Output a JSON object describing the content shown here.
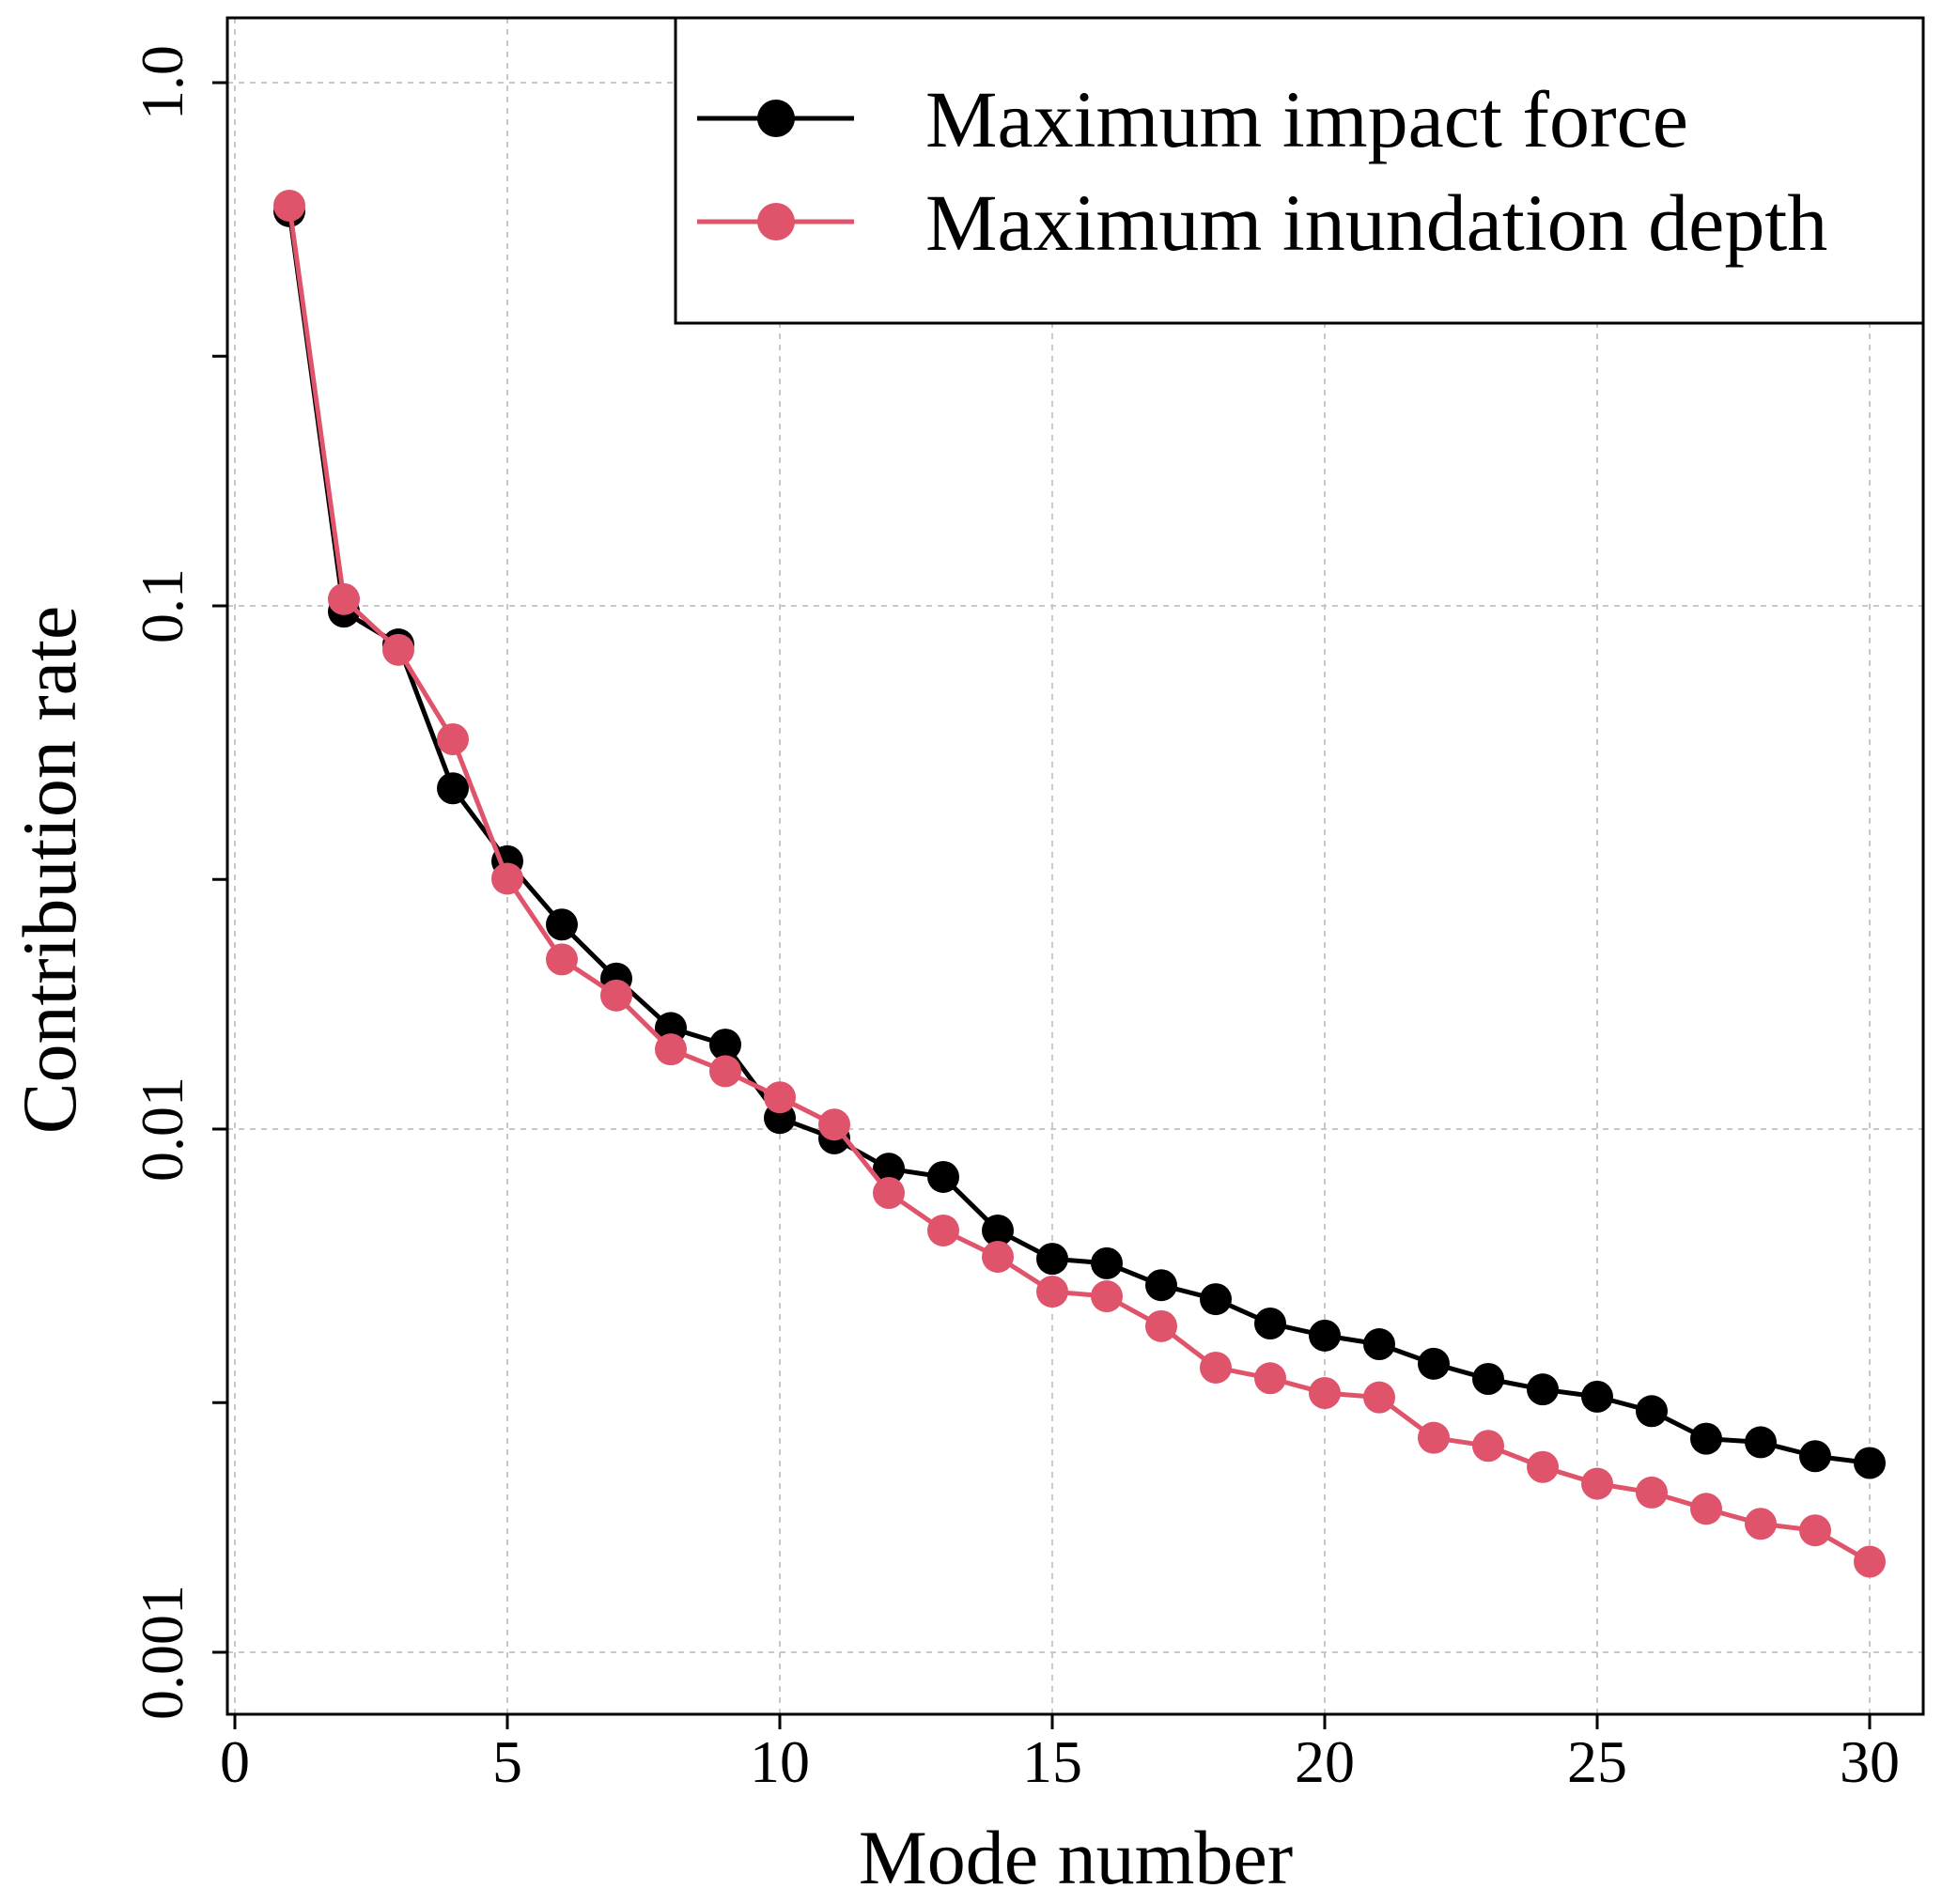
{
  "chart_data": {
    "type": "line",
    "title": "",
    "xlabel": "Mode number",
    "ylabel": "Contribution rate",
    "x_scale": "linear",
    "y_scale": "log",
    "xlim": [
      0,
      30
    ],
    "ylim": [
      0.0007,
      1.5
    ],
    "x_ticks": [
      0,
      5,
      10,
      15,
      20,
      25,
      30
    ],
    "x_tick_labels": [
      "0",
      "5",
      "10",
      "15",
      "20",
      "25",
      "30"
    ],
    "y_major_ticks": [
      0.001,
      0.01,
      0.1,
      1.0
    ],
    "y_tick_labels": [
      "0.001",
      "0.01",
      "0.1",
      "1.0"
    ],
    "y_minor_ticks": [
      0.003,
      0.03,
      0.3
    ],
    "grid": true,
    "legend": {
      "position": "top-right",
      "entries": [
        "Maximum impact force",
        "Maximum inundation depth"
      ]
    },
    "x": [
      1,
      2,
      3,
      4,
      5,
      6,
      7,
      8,
      9,
      10,
      11,
      12,
      13,
      14,
      15,
      16,
      17,
      18,
      19,
      20,
      21,
      22,
      23,
      24,
      25,
      26,
      27,
      28,
      29,
      30
    ],
    "series": [
      {
        "name": "Maximum impact force",
        "color": "#000000",
        "marker": "circle",
        "values": [
          0.568,
          0.0975,
          0.0844,
          0.0448,
          0.0325,
          0.0246,
          0.0194,
          0.0156,
          0.0145,
          0.0105,
          0.0096,
          0.0084,
          0.0081,
          0.0064,
          0.00565,
          0.00554,
          0.00503,
          0.00473,
          0.00425,
          0.00403,
          0.00388,
          0.00356,
          0.00333,
          0.00318,
          0.00308,
          0.00289,
          0.00256,
          0.00252,
          0.00237,
          0.0023
        ]
      },
      {
        "name": "Maximum inundation depth",
        "color": "#DF536B",
        "marker": "circle",
        "values": [
          0.582,
          0.103,
          0.0824,
          0.0556,
          0.0301,
          0.0211,
          0.018,
          0.0142,
          0.0129,
          0.0115,
          0.0102,
          0.00755,
          0.0064,
          0.0057,
          0.00489,
          0.00479,
          0.0042,
          0.0035,
          0.00334,
          0.00313,
          0.00307,
          0.00257,
          0.00248,
          0.00226,
          0.0021,
          0.00202,
          0.00188,
          0.00176,
          0.00171,
          0.00149
        ]
      }
    ]
  }
}
